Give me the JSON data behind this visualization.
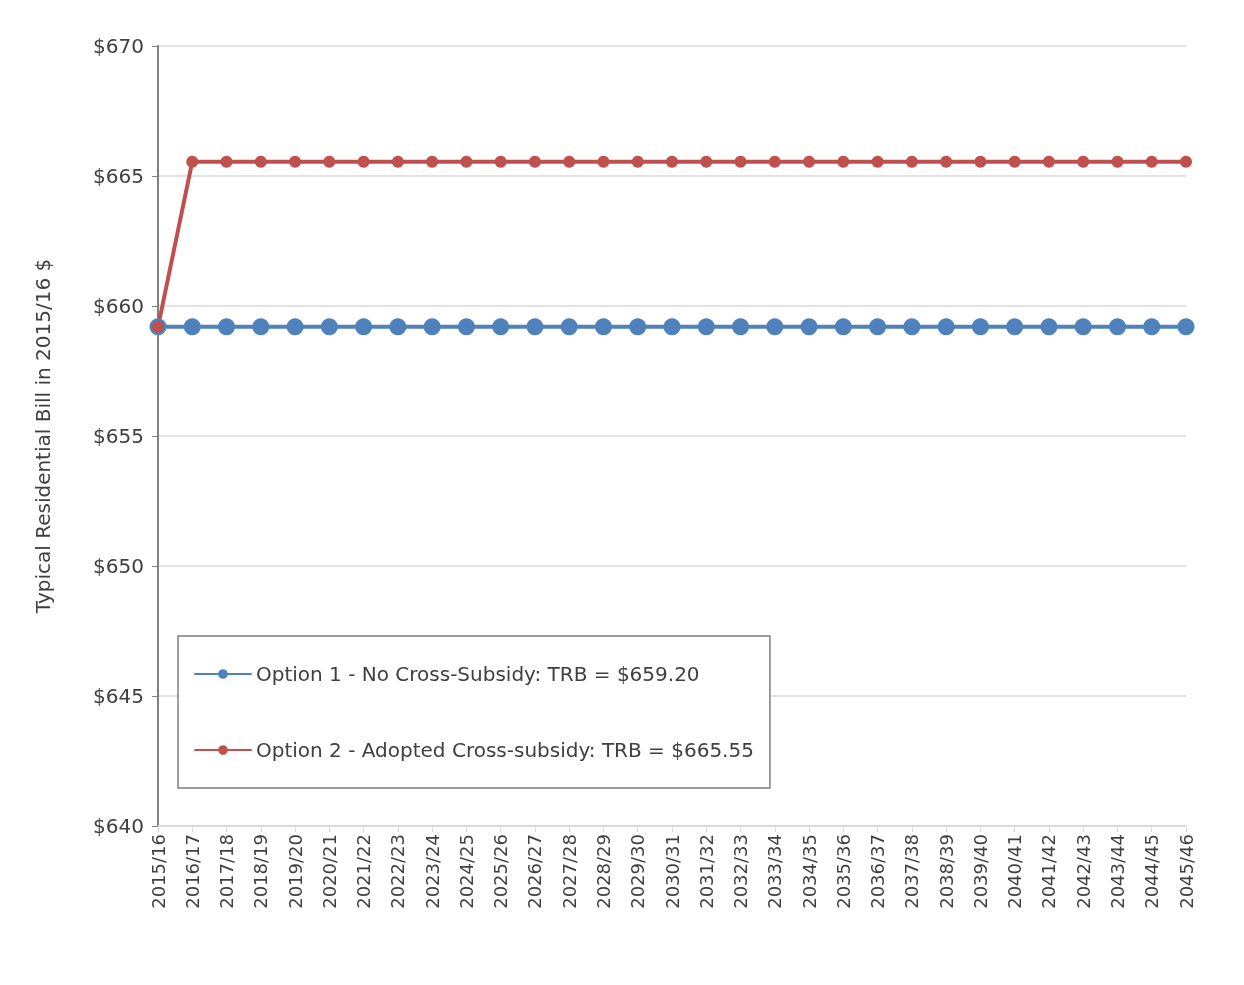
{
  "chart_data": {
    "type": "line",
    "ylabel": "Typical Residential Bill in 2015/16 $",
    "categories": [
      "2015/16",
      "2016/17",
      "2017/18",
      "2018/19",
      "2019/20",
      "2020/21",
      "2021/22",
      "2022/23",
      "2023/24",
      "2024/25",
      "2025/26",
      "2026/27",
      "2027/28",
      "2028/29",
      "2029/30",
      "2030/31",
      "2031/32",
      "2032/33",
      "2033/34",
      "2034/35",
      "2035/36",
      "2036/37",
      "2037/38",
      "2038/39",
      "2039/40",
      "2040/41",
      "2041/42",
      "2042/43",
      "2043/44",
      "2044/45",
      "2045/46"
    ],
    "series": [
      {
        "name": "Option 1 - No Cross-Subsidy: TRB = $659.20",
        "color": "#4f81bd",
        "values": [
          659.2,
          659.2,
          659.2,
          659.2,
          659.2,
          659.2,
          659.2,
          659.2,
          659.2,
          659.2,
          659.2,
          659.2,
          659.2,
          659.2,
          659.2,
          659.2,
          659.2,
          659.2,
          659.2,
          659.2,
          659.2,
          659.2,
          659.2,
          659.2,
          659.2,
          659.2,
          659.2,
          659.2,
          659.2,
          659.2,
          659.2
        ]
      },
      {
        "name": "Option 2 - Adopted Cross-subsidy: TRB = $665.55",
        "color": "#c0504d",
        "values": [
          659.2,
          665.55,
          665.55,
          665.55,
          665.55,
          665.55,
          665.55,
          665.55,
          665.55,
          665.55,
          665.55,
          665.55,
          665.55,
          665.55,
          665.55,
          665.55,
          665.55,
          665.55,
          665.55,
          665.55,
          665.55,
          665.55,
          665.55,
          665.55,
          665.55,
          665.55,
          665.55,
          665.55,
          665.55,
          665.55,
          665.55
        ]
      }
    ],
    "ylim": [
      640,
      670
    ],
    "yticks": [
      {
        "value": 640,
        "label": "$640"
      },
      {
        "value": 645,
        "label": "$645"
      },
      {
        "value": 650,
        "label": "$650"
      },
      {
        "value": 655,
        "label": "$655"
      },
      {
        "value": 660,
        "label": "$660"
      },
      {
        "value": 665,
        "label": "$665"
      },
      {
        "value": 670,
        "label": "$670"
      }
    ],
    "grid": "y",
    "legend": "bottom left",
    "marker": "circle",
    "line_style": "solid"
  }
}
